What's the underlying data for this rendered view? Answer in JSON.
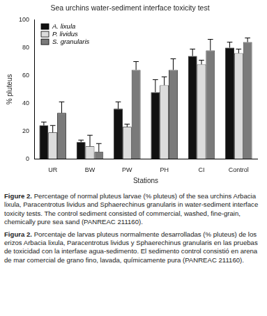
{
  "chart_data": {
    "type": "bar",
    "title": "Sea urchins water-sediment interface toxicity test",
    "x_label": "Stations",
    "y_label": "% pluteus",
    "categories": [
      "UR",
      "BW",
      "PW",
      "PH",
      "CI",
      "Control"
    ],
    "series": [
      {
        "name": "A. lixula",
        "color": "#111111",
        "values": [
          24,
          12,
          36,
          48,
          74,
          80
        ],
        "errors": [
          2.5,
          1.5,
          5,
          9,
          5,
          4
        ]
      },
      {
        "name": "P. lividus",
        "color": "#dcdcdc",
        "values": [
          19,
          9,
          23,
          53,
          68,
          76
        ],
        "errors": [
          5,
          8,
          2,
          6,
          3,
          3
        ]
      },
      {
        "name": "S. granularis",
        "color": "#7a7a7a",
        "values": [
          33,
          5,
          64,
          64,
          78,
          84
        ],
        "errors": [
          8,
          6,
          6,
          8,
          8,
          3
        ]
      }
    ],
    "ylim": [
      0,
      100
    ],
    "yticks": [
      0,
      20,
      40,
      60,
      80,
      100
    ],
    "legend": "top-left",
    "grid": false
  },
  "captions": [
    {
      "label": "Figure 2.",
      "text": "Percentage of normal pluteus larvae (% pluteus) of the sea urchins Arbacia lixula, Paracentrotus lividus and Sphaerechinus granularis in water-sediment interface toxicity tests. The control sediment consisted of commercial, washed, fine-grain, chemically pure sea sand (PANREAC 211160)."
    },
    {
      "label": "Figura 2.",
      "text": "Porcentaje de larvas pluteus normalmente desarrolladas (% pluteus) de los erizos Arbacia lixula, Paracentrotus lividus y Sphaerechinus granularis en las pruebas de toxicidad con la interfase agua-sedimento. El sedimento control consistió en arena de mar comercial de grano fino, lavada, químicamente pura (PANREAC 211160)."
    }
  ]
}
